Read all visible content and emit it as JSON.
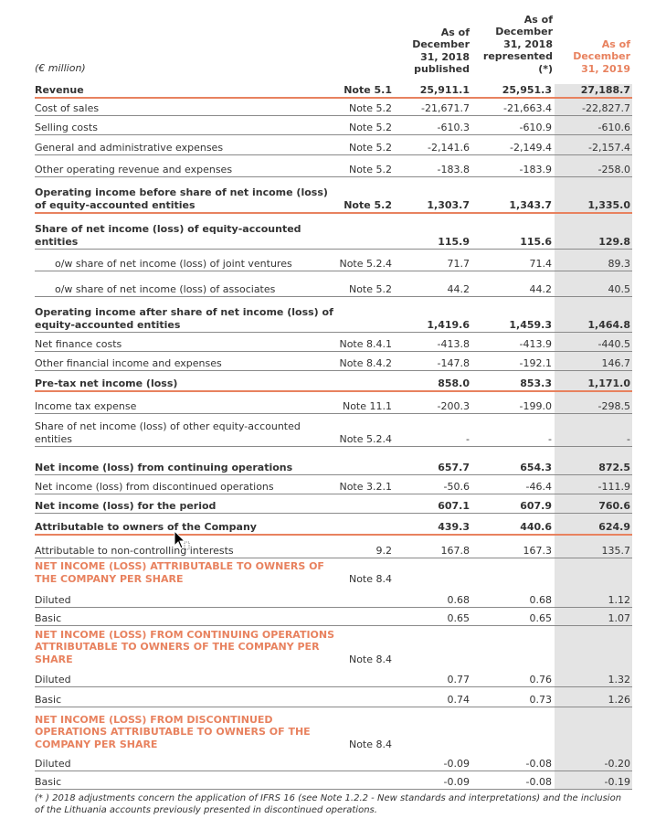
{
  "header": {
    "unit_label": "(€ million)",
    "col1": [
      "As of",
      "December",
      "31, 2018",
      "published"
    ],
    "col2": [
      "As of",
      "December",
      "31, 2018",
      "represented",
      "(*)"
    ],
    "col3": [
      "As of",
      "December",
      "31, 2019"
    ]
  },
  "rows": [
    {
      "label": "Revenue",
      "note": "Note 5.1",
      "c1": "25,911.1",
      "c2": "25,951.3",
      "c3": "27,188.7"
    },
    {
      "label": "Cost of sales",
      "note": "Note 5.2",
      "c1": "-21,671.7",
      "c2": "-21,663.4",
      "c3": "-22,827.7"
    },
    {
      "label": "Selling costs",
      "note": "Note 5.2",
      "c1": "-610.3",
      "c2": "-610.9",
      "c3": "-610.6"
    },
    {
      "label": "General and administrative expenses",
      "note": "Note 5.2",
      "c1": "-2,141.6",
      "c2": "-2,149.4",
      "c3": "-2,157.4"
    },
    {
      "label": "Other operating revenue and expenses",
      "note": "Note 5.2",
      "c1": "-183.8",
      "c2": "-183.9",
      "c3": "-258.0"
    },
    {
      "label": "Operating income before share of net income (loss) of equity-accounted entities",
      "note": "Note 5.2",
      "c1": "1,303.7",
      "c2": "1,343.7",
      "c3": "1,335.0"
    },
    {
      "label": "Share of net income (loss) of equity-accounted entities",
      "note": "",
      "c1": "115.9",
      "c2": "115.6",
      "c3": "129.8"
    },
    {
      "label": "o/w share of net income (loss) of joint ventures",
      "note": "Note 5.2.4",
      "c1": "71.7",
      "c2": "71.4",
      "c3": "89.3"
    },
    {
      "label": "o/w share of net income (loss) of associates",
      "note": "Note 5.2",
      "c1": "44.2",
      "c2": "44.2",
      "c3": "40.5"
    },
    {
      "label": "Operating income after share of net income (loss) of equity-accounted entities",
      "note": "",
      "c1": "1,419.6",
      "c2": "1,459.3",
      "c3": "1,464.8"
    },
    {
      "label": "Net finance costs",
      "note": "Note 8.4.1",
      "c1": "-413.8",
      "c2": "-413.9",
      "c3": "-440.5"
    },
    {
      "label": "Other financial income and expenses",
      "note": "Note 8.4.2",
      "c1": "-147.8",
      "c2": "-192.1",
      "c3": "146.7"
    },
    {
      "label": "Pre-tax net income (loss)",
      "note": "",
      "c1": "858.0",
      "c2": "853.3",
      "c3": "1,171.0"
    },
    {
      "label": "Income tax expense",
      "note": "Note 11.1",
      "c1": "-200.3",
      "c2": "-199.0",
      "c3": "-298.5"
    },
    {
      "label": "Share of net income (loss) of other equity-accounted entities",
      "note": "Note 5.2.4",
      "c1": "-",
      "c2": "-",
      "c3": "-"
    },
    {
      "label": "Net income (loss) from continuing operations",
      "note": "",
      "c1": "657.7",
      "c2": "654.3",
      "c3": "872.5"
    },
    {
      "label": "Net income (loss) from discontinued operations",
      "note": "Note 3.2.1",
      "c1": "-50.6",
      "c2": "-46.4",
      "c3": "-111.9"
    },
    {
      "label": "Net income (loss) for the period",
      "note": "",
      "c1": "607.1",
      "c2": "607.9",
      "c3": "760.6"
    },
    {
      "label": "Attributable to owners of the Company",
      "note": "",
      "c1": "439.3",
      "c2": "440.6",
      "c3": "624.9"
    },
    {
      "label": "Attributable to non-controlling interests",
      "note": "9.2",
      "c1": "167.8",
      "c2": "167.3",
      "c3": "135.7"
    },
    {
      "label": "NET INCOME (LOSS) ATTRIBUTABLE TO OWNERS OF THE COMPANY PER SHARE",
      "note": "Note 8.4",
      "c1": "",
      "c2": "",
      "c3": ""
    },
    {
      "label": "Diluted",
      "note": "",
      "c1": "0.68",
      "c2": "0.68",
      "c3": "1.12"
    },
    {
      "label": "Basic",
      "note": "",
      "c1": "0.65",
      "c2": "0.65",
      "c3": "1.07"
    },
    {
      "label": "NET INCOME (LOSS) FROM CONTINUING OPERATIONS ATTRIBUTABLE TO OWNERS OF THE COMPANY PER SHARE",
      "note": "Note 8.4",
      "c1": "",
      "c2": "",
      "c3": ""
    },
    {
      "label": "Diluted",
      "note": "",
      "c1": "0.77",
      "c2": "0.76",
      "c3": "1.32"
    },
    {
      "label": "Basic",
      "note": "",
      "c1": "0.74",
      "c2": "0.73",
      "c3": "1.26"
    },
    {
      "label": "NET INCOME (LOSS) FROM DISCONTINUED OPERATIONS ATTRIBUTABLE TO OWNERS OF THE COMPANY PER SHARE",
      "note": "Note 8.4",
      "c1": "",
      "c2": "",
      "c3": ""
    },
    {
      "label": "Diluted",
      "note": "",
      "c1": "-0.09",
      "c2": "-0.08",
      "c3": "-0.20"
    },
    {
      "label": "Basic",
      "note": "",
      "c1": "-0.09",
      "c2": "-0.08",
      "c3": "-0.19"
    }
  ],
  "footnote": "(* ) 2018 adjustments concern the application of IFRS 16 (see Note 1.2.2 - New standards and interpretations) and the inclusion of the Lithuania accounts previously presented in discontinued operations.",
  "colors": {
    "accent": "#e8825f",
    "shade": "#e4e4e4"
  }
}
